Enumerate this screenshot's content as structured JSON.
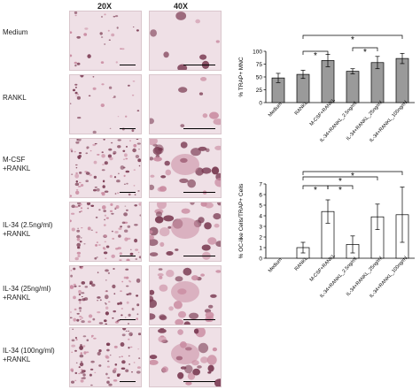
{
  "figure": {
    "columns": [
      "20X",
      "40X"
    ],
    "rows": [
      {
        "label": "Medium"
      },
      {
        "label": "RANKL"
      },
      {
        "label": "M-CSF\n+RANKL"
      },
      {
        "label": "IL-34 (2.5ng/ml)\n+RANKL"
      },
      {
        "label": "IL-34 (25ng/ml)\n+RANKL"
      },
      {
        "label": "IL-34 (100ng/ml)\n+RANKL"
      }
    ],
    "colors": {
      "tissue_bg": "#efe0e6",
      "cell_dark": "#7a3a52",
      "cell_light": "#c98aa0",
      "bar_fill_gray": "#9a9a9a",
      "bar_fill_white": "#ffffff"
    }
  },
  "chart_data": [
    {
      "type": "bar",
      "ylabel": "% TRAP+ MNC",
      "ylim": [
        0,
        100
      ],
      "yticks": [
        0,
        25,
        50,
        75,
        100
      ],
      "categories": [
        "Medium",
        "RANKL",
        "M-CSF+RANKL",
        "IL-34+RANKL_2.5ng/ml",
        "IL-34+RANKL_25ng/ml",
        "IL-34+RANKL_100ng/ml"
      ],
      "values": [
        48,
        55,
        82,
        61,
        78,
        86
      ],
      "errors": [
        9,
        8,
        12,
        5,
        12,
        10
      ],
      "significance": [
        {
          "from": 1,
          "to": 2,
          "label": "*"
        },
        {
          "from": 1,
          "to": 5,
          "label": "*"
        },
        {
          "from": 3,
          "to": 4,
          "label": "*"
        }
      ]
    },
    {
      "type": "bar",
      "ylabel": "% OC-like Cells/TRAP+ Cells",
      "ylim": [
        0,
        7
      ],
      "yticks": [
        0,
        1,
        2,
        3,
        4,
        5,
        6,
        7
      ],
      "categories": [
        "Medium",
        "RANKL",
        "M-CSF+RANKL",
        "IL-34+RANKL_2.5ng/ml",
        "IL-34+RANKL_25ng/ml",
        "IL-34+RANKL_100ng/ml"
      ],
      "values": [
        0,
        1.0,
        4.4,
        1.3,
        3.9,
        4.1
      ],
      "errors": [
        0,
        0.5,
        1.1,
        0.8,
        1.2,
        2.6
      ],
      "significance": [
        {
          "from": 1,
          "to": 2,
          "label": "*"
        },
        {
          "from": 2,
          "to": 3,
          "label": "*"
        },
        {
          "from": 1,
          "to": 4,
          "label": "*"
        },
        {
          "from": 1,
          "to": 5,
          "label": "*"
        }
      ]
    }
  ]
}
